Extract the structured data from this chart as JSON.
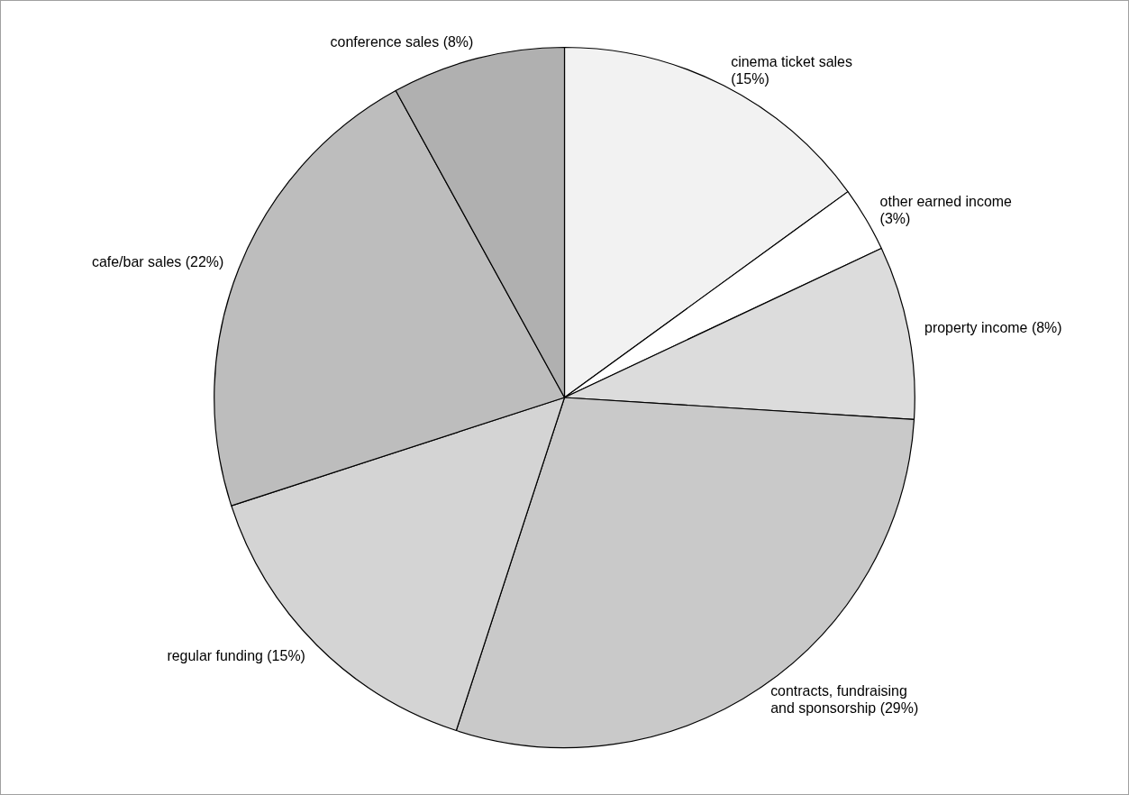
{
  "chart_data": {
    "type": "pie",
    "categories": [
      "cinema ticket sales (15%)",
      "other earned income (3%)",
      "property income (8%)",
      "contracts, fundraising and sponsorship (29%)",
      "regular funding (15%)",
      "cafe/bar sales (22%)",
      "conference sales (8%)"
    ],
    "values": [
      15,
      3,
      8,
      29,
      15,
      22,
      8
    ],
    "colors": [
      "#f2f2f2",
      "#ffffff",
      "#dcdcdc",
      "#c9c9c9",
      "#d4d4d4",
      "#bdbdbd",
      "#b0b0b0"
    ],
    "legend": false
  }
}
